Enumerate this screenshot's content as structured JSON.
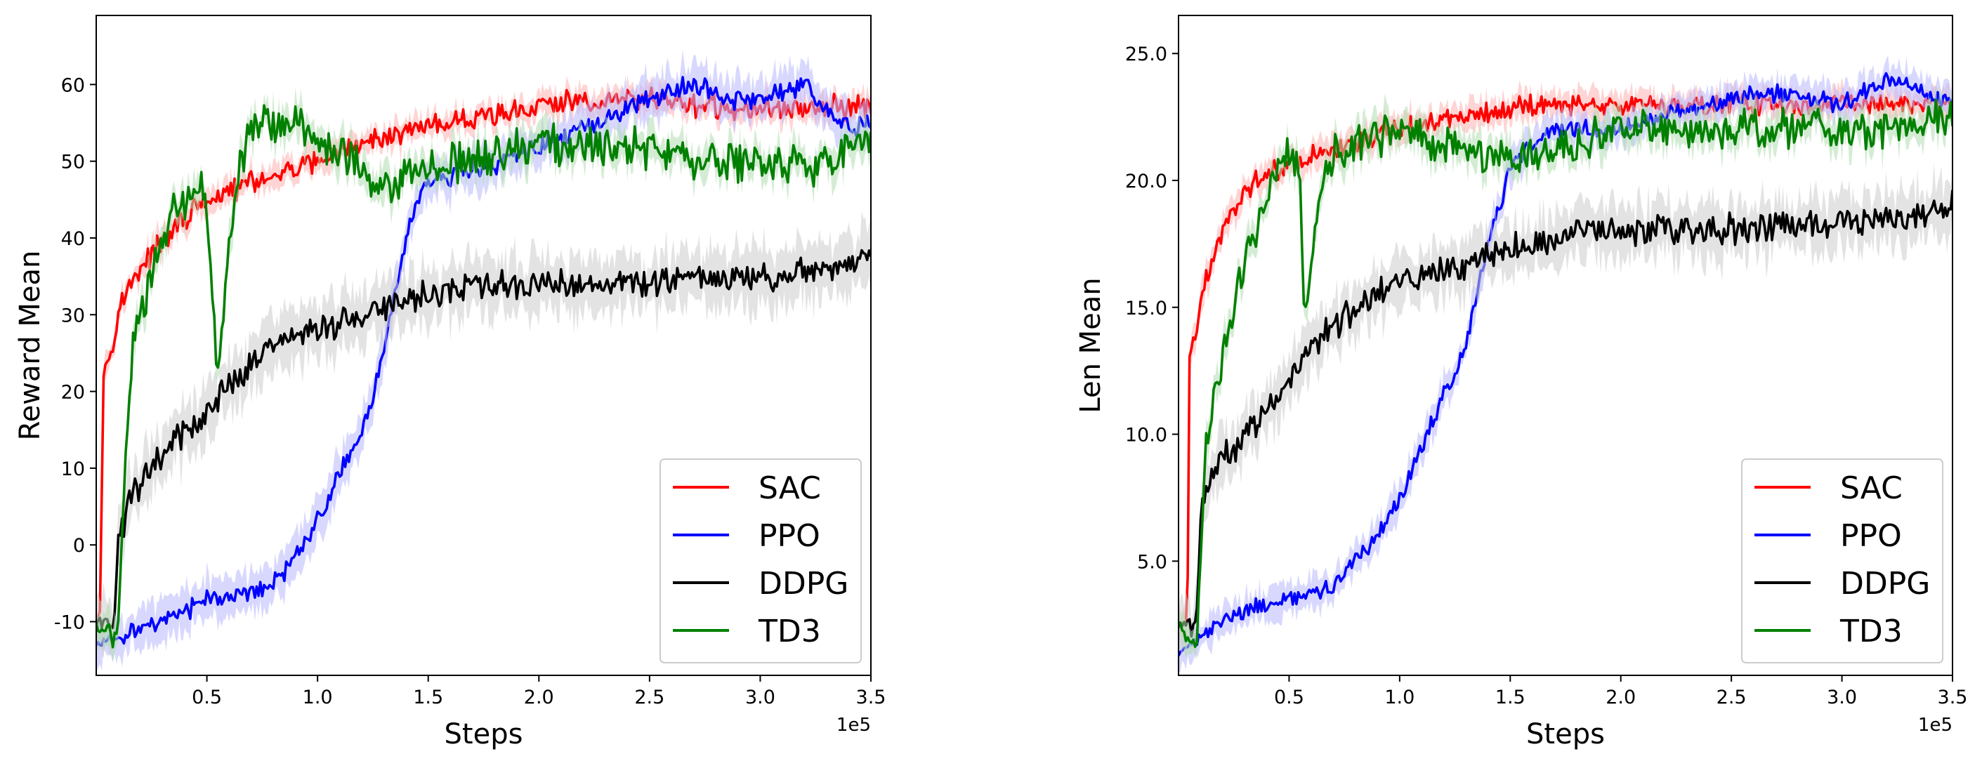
{
  "chart_data": [
    {
      "type": "line",
      "title": "",
      "xlabel": "Steps",
      "ylabel": "Reward Mean",
      "x_offset_label": "1e5",
      "xlim": [
        0.0,
        3.5
      ],
      "ylim": [
        -17,
        69
      ],
      "xticks": [
        0.5,
        1.0,
        1.5,
        2.0,
        2.5,
        3.0,
        3.5
      ],
      "xtick_labels": [
        "0.5",
        "1.0",
        "1.5",
        "2.0",
        "2.5",
        "3.0",
        "3.5"
      ],
      "yticks": [
        -10,
        0,
        10,
        20,
        30,
        40,
        50,
        60
      ],
      "ytick_labels": [
        "-10",
        "0",
        "10",
        "20",
        "30",
        "40",
        "50",
        "60"
      ],
      "legend_position": "lower-right",
      "series": [
        {
          "name": "SAC",
          "color": "#ff0000",
          "band_color": "#ffb0b0",
          "band": 1.5,
          "x": [
            0.0,
            0.02,
            0.03,
            0.05,
            0.08,
            0.12,
            0.18,
            0.25,
            0.35,
            0.45,
            0.6,
            0.8,
            1.0,
            1.2,
            1.4,
            1.6,
            1.8,
            2.0,
            2.2,
            2.5,
            2.8,
            3.1,
            3.5
          ],
          "values": [
            -10,
            -8,
            22,
            24,
            27,
            32,
            35,
            38,
            41,
            44,
            46,
            48,
            50,
            52,
            54,
            55,
            56,
            57,
            58,
            58,
            57,
            57,
            57
          ],
          "noise": 1.8
        },
        {
          "name": "PPO",
          "color": "#0000ff",
          "band_color": "#b8b8ff",
          "band": 2.5,
          "x": [
            0.0,
            0.1,
            0.2,
            0.3,
            0.4,
            0.5,
            0.6,
            0.7,
            0.8,
            0.9,
            1.0,
            1.1,
            1.2,
            1.25,
            1.3,
            1.35,
            1.4,
            1.45,
            1.5,
            1.6,
            1.7,
            1.8,
            1.9,
            2.0,
            2.1,
            2.2,
            2.3,
            2.4,
            2.5,
            2.6,
            2.7,
            2.8,
            2.9,
            3.0,
            3.1,
            3.2,
            3.3,
            3.4,
            3.5
          ],
          "values": [
            -13,
            -12,
            -11,
            -10,
            -9,
            -7,
            -7,
            -6,
            -5,
            -2,
            3,
            9,
            15,
            19,
            26,
            33,
            40,
            45,
            47,
            48,
            49,
            49,
            51,
            52,
            53,
            54,
            55,
            57,
            58,
            59,
            60,
            59,
            58,
            58,
            59,
            60,
            57,
            54,
            55
          ],
          "noise": 1.6
        },
        {
          "name": "DDPG",
          "color": "#000000",
          "band_color": "#cccccc",
          "band": 3.5,
          "x": [
            0.0,
            0.08,
            0.1,
            0.15,
            0.25,
            0.4,
            0.5,
            0.6,
            0.8,
            1.0,
            1.2,
            1.4,
            1.6,
            1.8,
            2.0,
            2.2,
            2.5,
            2.8,
            3.1,
            3.5
          ],
          "values": [
            -10,
            -10,
            0,
            6,
            10,
            15,
            17,
            21,
            26,
            28,
            30,
            32,
            33,
            34,
            34,
            34,
            34,
            35,
            35,
            37
          ],
          "noise": 2.2
        },
        {
          "name": "TD3",
          "color": "#008000",
          "band_color": "#b0dcb0",
          "band": 2.0,
          "x": [
            0.0,
            0.08,
            0.1,
            0.12,
            0.14,
            0.16,
            0.2,
            0.25,
            0.3,
            0.35,
            0.4,
            0.45,
            0.5,
            0.53,
            0.55,
            0.6,
            0.65,
            0.7,
            0.8,
            0.9,
            1.0,
            1.1,
            1.2,
            1.3,
            1.4,
            1.5,
            1.6,
            1.8,
            2.0,
            2.2,
            2.4,
            2.6,
            2.8,
            3.0,
            3.2,
            3.5
          ],
          "values": [
            -10,
            -12,
            -10,
            5,
            15,
            25,
            30,
            35,
            40,
            43,
            45,
            47,
            45,
            30,
            22,
            40,
            50,
            54,
            55,
            54,
            53,
            51,
            49,
            46,
            48,
            50,
            50,
            51,
            52,
            52,
            52,
            51,
            50,
            50,
            49,
            53
          ],
          "noise": 3.2
        }
      ]
    },
    {
      "type": "line",
      "title": "",
      "xlabel": "Steps",
      "ylabel": "Len Mean",
      "x_offset_label": "1e5",
      "xlim": [
        0.0,
        3.5
      ],
      "ylim": [
        0.5,
        26.5
      ],
      "xticks": [
        0.5,
        1.0,
        1.5,
        2.0,
        2.5,
        3.0,
        3.5
      ],
      "xtick_labels": [
        "0.5",
        "1.0",
        "1.5",
        "2.0",
        "2.5",
        "3.0",
        "3.5"
      ],
      "yticks": [
        5,
        10,
        15,
        20,
        25
      ],
      "ytick_labels": [
        "5.0",
        "10.0",
        "15.0",
        "20.0",
        "25.0"
      ],
      "legend_position": "lower-right",
      "series": [
        {
          "name": "SAC",
          "color": "#ff0000",
          "band_color": "#ffb0b0",
          "band": 0.5,
          "x": [
            0.0,
            0.04,
            0.05,
            0.08,
            0.12,
            0.18,
            0.25,
            0.35,
            0.45,
            0.6,
            0.8,
            1.0,
            1.3,
            1.6,
            2.0,
            2.4,
            2.8,
            3.2,
            3.5
          ],
          "values": [
            2.5,
            2.5,
            13,
            14,
            16,
            17.5,
            19,
            20,
            20.5,
            21,
            21.5,
            22,
            22.5,
            23,
            23,
            23,
            23,
            23,
            23
          ],
          "noise": 0.5
        },
        {
          "name": "PPO",
          "color": "#0000ff",
          "band_color": "#b8b8ff",
          "band": 0.6,
          "x": [
            0.0,
            0.1,
            0.2,
            0.3,
            0.4,
            0.5,
            0.6,
            0.7,
            0.8,
            0.9,
            1.0,
            1.1,
            1.2,
            1.3,
            1.35,
            1.4,
            1.45,
            1.5,
            1.6,
            1.7,
            1.8,
            1.9,
            2.0,
            2.2,
            2.4,
            2.6,
            2.8,
            3.0,
            3.2,
            3.5
          ],
          "values": [
            1.3,
            2.0,
            2.6,
            3.0,
            3.3,
            3.5,
            3.7,
            4.0,
            5.0,
            6.0,
            7.5,
            9.5,
            11.5,
            13.5,
            15.5,
            17.5,
            19,
            20.5,
            21.5,
            22,
            22,
            22,
            22,
            22.5,
            23,
            23.5,
            23.3,
            23,
            24,
            23
          ],
          "noise": 0.4
        },
        {
          "name": "DDPG",
          "color": "#000000",
          "band_color": "#cccccc",
          "band": 1.0,
          "x": [
            0.0,
            0.08,
            0.1,
            0.15,
            0.25,
            0.4,
            0.5,
            0.6,
            0.8,
            1.0,
            1.2,
            1.4,
            1.6,
            1.8,
            2.0,
            2.4,
            2.8,
            3.2,
            3.5
          ],
          "values": [
            2.5,
            2.5,
            7,
            8.5,
            9.5,
            11,
            12,
            13.5,
            15,
            16,
            16.5,
            17,
            17.5,
            18,
            18,
            18,
            18.2,
            18.5,
            19
          ],
          "noise": 0.7
        },
        {
          "name": "TD3",
          "color": "#008000",
          "band_color": "#b0dcb0",
          "band": 0.6,
          "x": [
            0.0,
            0.08,
            0.1,
            0.12,
            0.15,
            0.2,
            0.25,
            0.3,
            0.35,
            0.4,
            0.45,
            0.5,
            0.55,
            0.57,
            0.6,
            0.65,
            0.7,
            0.8,
            1.0,
            1.2,
            1.4,
            1.6,
            1.8,
            2.0,
            2.4,
            2.8,
            3.2,
            3.5
          ],
          "values": [
            2.5,
            1.5,
            5,
            9,
            11,
            13,
            15,
            17,
            18,
            19.5,
            20.5,
            21,
            20.5,
            14,
            17,
            19.5,
            21,
            21.5,
            22,
            21.5,
            21,
            21,
            21.5,
            22,
            22,
            22,
            22,
            22.5
          ],
          "noise": 0.9
        }
      ]
    }
  ]
}
